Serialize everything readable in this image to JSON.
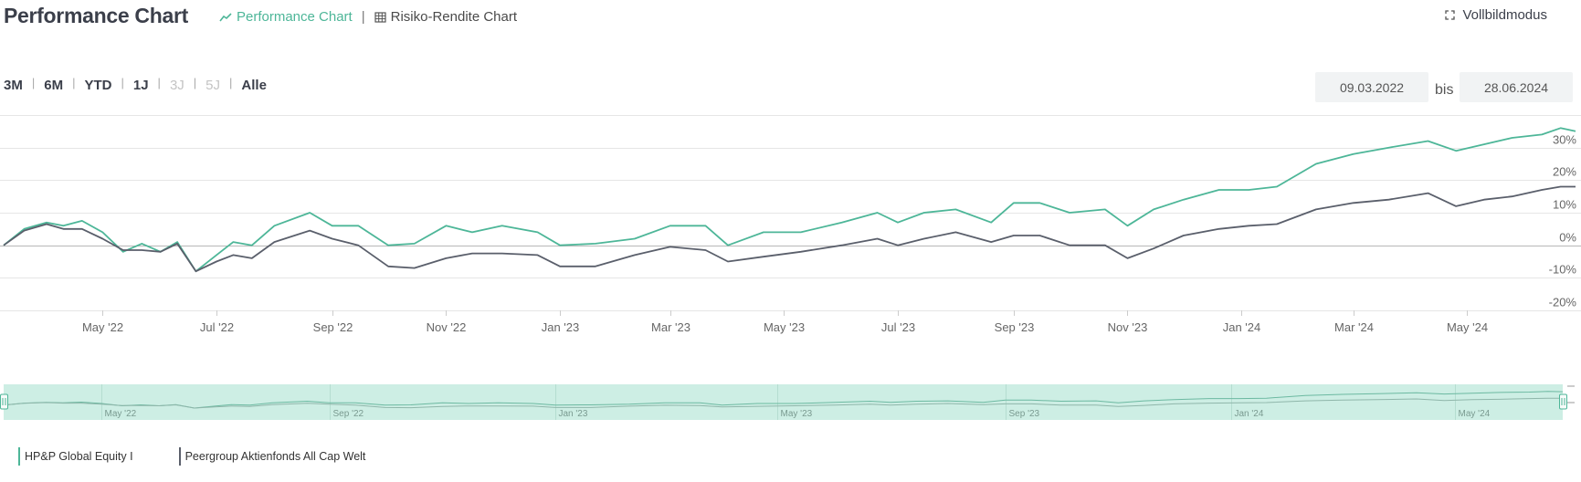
{
  "header": {
    "title": "Performance Chart",
    "tabs": [
      {
        "label": "Performance Chart",
        "icon": "line-chart-icon",
        "active": true
      },
      {
        "label": "Risiko-Rendite Chart",
        "icon": "grid-icon",
        "active": false
      }
    ],
    "separator": "|",
    "fullscreen_label": "Vollbildmodus"
  },
  "range": {
    "buttons": [
      {
        "label": "3M",
        "enabled": true
      },
      {
        "label": "6M",
        "enabled": true
      },
      {
        "label": "YTD",
        "enabled": true
      },
      {
        "label": "1J",
        "enabled": true
      },
      {
        "label": "3J",
        "enabled": false
      },
      {
        "label": "5J",
        "enabled": false
      },
      {
        "label": "Alle",
        "enabled": true
      }
    ],
    "from": "09.03.2022",
    "to_label": "bis",
    "to": "28.06.2024"
  },
  "colors": {
    "fund": "#4db698",
    "peer": "#5a5f6b",
    "navigator_fill": "#cdeee4",
    "grid": "#e6e6e6"
  },
  "chart_data": {
    "type": "line",
    "title": "",
    "xlabel": "",
    "ylabel": "",
    "x_range": [
      "2022-03-09",
      "2024-06-28"
    ],
    "ylim": [
      -20,
      40
    ],
    "y_ticks": [
      30,
      20,
      10,
      0,
      -10,
      -20
    ],
    "y_tick_labels": [
      "30%",
      "20%",
      "10%",
      "0%",
      "-10%",
      "-20%"
    ],
    "x_tick_labels": [
      {
        "date": "2022-05-01",
        "label": "May '22"
      },
      {
        "date": "2022-07-01",
        "label": "Jul '22"
      },
      {
        "date": "2022-09-01",
        "label": "Sep '22"
      },
      {
        "date": "2022-11-01",
        "label": "Nov '22"
      },
      {
        "date": "2023-01-01",
        "label": "Jan '23"
      },
      {
        "date": "2023-03-01",
        "label": "Mar '23"
      },
      {
        "date": "2023-05-01",
        "label": "May '23"
      },
      {
        "date": "2023-07-01",
        "label": "Jul '23"
      },
      {
        "date": "2023-09-01",
        "label": "Sep '23"
      },
      {
        "date": "2023-11-01",
        "label": "Nov '23"
      },
      {
        "date": "2024-01-01",
        "label": "Jan '24"
      },
      {
        "date": "2024-03-01",
        "label": "Mar '24"
      },
      {
        "date": "2024-05-01",
        "label": "May '24"
      }
    ],
    "navigator_tick_labels": [
      {
        "date": "2022-05-01",
        "label": "May '22"
      },
      {
        "date": "2022-09-01",
        "label": "Sep '22"
      },
      {
        "date": "2023-01-01",
        "label": "Jan '23"
      },
      {
        "date": "2023-05-01",
        "label": "May '23"
      },
      {
        "date": "2023-09-01",
        "label": "Sep '23"
      },
      {
        "date": "2024-01-01",
        "label": "Jan '24"
      },
      {
        "date": "2024-05-01",
        "label": "May '24"
      }
    ],
    "legend_position": "bottom-left",
    "series": [
      {
        "name": "HP&P Global Equity I",
        "color": "#4db698",
        "points": [
          [
            "2022-03-09",
            0
          ],
          [
            "2022-03-20",
            5
          ],
          [
            "2022-04-01",
            7
          ],
          [
            "2022-04-10",
            6
          ],
          [
            "2022-04-20",
            7.5
          ],
          [
            "2022-05-01",
            4
          ],
          [
            "2022-05-12",
            -2
          ],
          [
            "2022-05-22",
            0.5
          ],
          [
            "2022-06-01",
            -2
          ],
          [
            "2022-06-10",
            1
          ],
          [
            "2022-06-20",
            -8
          ],
          [
            "2022-07-01",
            -3
          ],
          [
            "2022-07-10",
            1
          ],
          [
            "2022-07-20",
            0
          ],
          [
            "2022-08-01",
            6
          ],
          [
            "2022-08-20",
            10
          ],
          [
            "2022-09-01",
            6
          ],
          [
            "2022-09-15",
            6
          ],
          [
            "2022-10-01",
            0
          ],
          [
            "2022-10-15",
            0.5
          ],
          [
            "2022-11-01",
            6
          ],
          [
            "2022-11-15",
            4
          ],
          [
            "2022-12-01",
            6
          ],
          [
            "2022-12-20",
            4
          ],
          [
            "2023-01-01",
            0
          ],
          [
            "2023-01-20",
            0.5
          ],
          [
            "2023-02-10",
            2
          ],
          [
            "2023-03-01",
            6
          ],
          [
            "2023-03-20",
            6
          ],
          [
            "2023-04-01",
            0
          ],
          [
            "2023-04-20",
            4
          ],
          [
            "2023-05-10",
            4
          ],
          [
            "2023-06-01",
            7
          ],
          [
            "2023-06-20",
            10
          ],
          [
            "2023-07-01",
            7
          ],
          [
            "2023-07-15",
            10
          ],
          [
            "2023-08-01",
            11
          ],
          [
            "2023-08-20",
            7
          ],
          [
            "2023-09-01",
            13
          ],
          [
            "2023-09-15",
            13
          ],
          [
            "2023-10-01",
            10
          ],
          [
            "2023-10-20",
            11
          ],
          [
            "2023-11-01",
            6
          ],
          [
            "2023-11-15",
            11
          ],
          [
            "2023-12-01",
            14
          ],
          [
            "2023-12-20",
            17
          ],
          [
            "2024-01-05",
            17
          ],
          [
            "2024-01-20",
            18
          ],
          [
            "2024-02-10",
            25
          ],
          [
            "2024-03-01",
            28
          ],
          [
            "2024-03-20",
            30
          ],
          [
            "2024-04-10",
            32
          ],
          [
            "2024-04-25",
            29
          ],
          [
            "2024-05-10",
            31
          ],
          [
            "2024-05-25",
            33
          ],
          [
            "2024-06-10",
            34
          ],
          [
            "2024-06-20",
            36
          ],
          [
            "2024-06-28",
            35
          ]
        ]
      },
      {
        "name": "Peergroup Aktienfonds All Cap Welt",
        "color": "#5a5f6b",
        "points": [
          [
            "2022-03-09",
            0
          ],
          [
            "2022-03-20",
            4.5
          ],
          [
            "2022-04-01",
            6.5
          ],
          [
            "2022-04-10",
            5
          ],
          [
            "2022-04-20",
            5
          ],
          [
            "2022-05-01",
            2
          ],
          [
            "2022-05-12",
            -1.5
          ],
          [
            "2022-05-22",
            -1.5
          ],
          [
            "2022-06-01",
            -2
          ],
          [
            "2022-06-10",
            0.5
          ],
          [
            "2022-06-20",
            -8
          ],
          [
            "2022-07-01",
            -5
          ],
          [
            "2022-07-10",
            -3
          ],
          [
            "2022-07-20",
            -4
          ],
          [
            "2022-08-01",
            1
          ],
          [
            "2022-08-20",
            4.5
          ],
          [
            "2022-09-01",
            2
          ],
          [
            "2022-09-15",
            0
          ],
          [
            "2022-10-01",
            -6.5
          ],
          [
            "2022-10-15",
            -7
          ],
          [
            "2022-11-01",
            -4
          ],
          [
            "2022-11-15",
            -2.5
          ],
          [
            "2022-12-01",
            -2.5
          ],
          [
            "2022-12-20",
            -3
          ],
          [
            "2023-01-01",
            -6.5
          ],
          [
            "2023-01-20",
            -6.5
          ],
          [
            "2023-02-10",
            -3
          ],
          [
            "2023-03-01",
            -0.5
          ],
          [
            "2023-03-20",
            -1.5
          ],
          [
            "2023-04-01",
            -5
          ],
          [
            "2023-04-20",
            -3.5
          ],
          [
            "2023-05-10",
            -2
          ],
          [
            "2023-06-01",
            0
          ],
          [
            "2023-06-20",
            2
          ],
          [
            "2023-07-01",
            0
          ],
          [
            "2023-07-15",
            2
          ],
          [
            "2023-08-01",
            4
          ],
          [
            "2023-08-20",
            1
          ],
          [
            "2023-09-01",
            3
          ],
          [
            "2023-09-15",
            3
          ],
          [
            "2023-10-01",
            0
          ],
          [
            "2023-10-20",
            0
          ],
          [
            "2023-11-01",
            -4
          ],
          [
            "2023-11-15",
            -1
          ],
          [
            "2023-12-01",
            3
          ],
          [
            "2023-12-20",
            5
          ],
          [
            "2024-01-05",
            6
          ],
          [
            "2024-01-20",
            6.5
          ],
          [
            "2024-02-10",
            11
          ],
          [
            "2024-03-01",
            13
          ],
          [
            "2024-03-20",
            14
          ],
          [
            "2024-04-10",
            16
          ],
          [
            "2024-04-25",
            12
          ],
          [
            "2024-05-10",
            14
          ],
          [
            "2024-05-25",
            15
          ],
          [
            "2024-06-10",
            17
          ],
          [
            "2024-06-20",
            18
          ],
          [
            "2024-06-28",
            18
          ]
        ]
      }
    ]
  }
}
